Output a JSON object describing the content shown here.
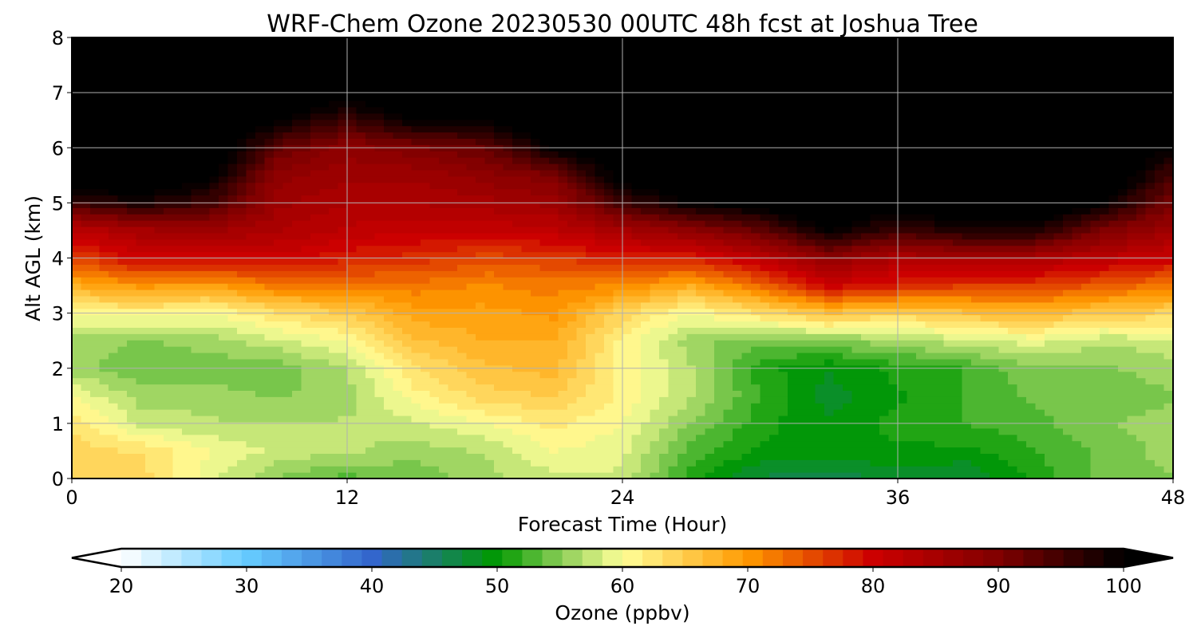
{
  "chart_data": {
    "type": "heatmap",
    "title": "WRF-Chem Ozone  20230530 00UTC 48h fcst at Joshua Tree",
    "xlabel": "Forecast Time (Hour)",
    "ylabel": "Alt AGL (km)",
    "xlim": [
      0,
      48
    ],
    "ylim": [
      0,
      8
    ],
    "xticks": [
      "0",
      "12",
      "24",
      "36",
      "48"
    ],
    "yticks": [
      "0",
      "1",
      "2",
      "3",
      "4",
      "5",
      "6",
      "7",
      "8"
    ],
    "grid": true,
    "colorbar": {
      "label": "Ozone  (ppbv)",
      "range": [
        20,
        100
      ],
      "extend": "both",
      "ticks": [
        "20",
        "30",
        "40",
        "50",
        "60",
        "70",
        "80",
        "90",
        "100"
      ],
      "anchors": [
        {
          "v": 20,
          "c": "#ffffff"
        },
        {
          "v": 30,
          "c": "#66ccff"
        },
        {
          "v": 40,
          "c": "#3366cc"
        },
        {
          "v": 50,
          "c": "#009900"
        },
        {
          "v": 55,
          "c": "#88cc55"
        },
        {
          "v": 60,
          "c": "#ffff99"
        },
        {
          "v": 70,
          "c": "#ff9900"
        },
        {
          "v": 80,
          "c": "#cc0000"
        },
        {
          "v": 90,
          "c": "#800000"
        },
        {
          "v": 100,
          "c": "#000000"
        }
      ]
    },
    "x_hours": [
      0,
      3,
      6,
      9,
      12,
      15,
      18,
      21,
      24,
      27,
      30,
      33,
      36,
      39,
      42,
      45,
      48
    ],
    "y_km": [
      0,
      0.5,
      1,
      1.5,
      2,
      2.5,
      3,
      3.5,
      4,
      4.5,
      5,
      5.5,
      6,
      6.5,
      7,
      7.5,
      8
    ],
    "ozone_ppbv_by_hour": [
      [
        64,
        64,
        63,
        60,
        56,
        56,
        60,
        68,
        75,
        82,
        95,
        105,
        105,
        105,
        105,
        105,
        105
      ],
      [
        64,
        63,
        58,
        56,
        54,
        55,
        61,
        70,
        80,
        85,
        98,
        105,
        105,
        105,
        105,
        105,
        105
      ],
      [
        59,
        60,
        57,
        56,
        54,
        56,
        60,
        69,
        80,
        86,
        95,
        101,
        105,
        105,
        105,
        105,
        105
      ],
      [
        55,
        58,
        57,
        55,
        54,
        58,
        63,
        72,
        80,
        84,
        86,
        88,
        92,
        100,
        105,
        105,
        105
      ],
      [
        53,
        57,
        57,
        56,
        57,
        60,
        65,
        72,
        78,
        82,
        84,
        86,
        88,
        95,
        102,
        105,
        105
      ],
      [
        54,
        56,
        58,
        61,
        63,
        66,
        69,
        72,
        77,
        81,
        84,
        86,
        90,
        100,
        105,
        105,
        105
      ],
      [
        56,
        57,
        60,
        64,
        66,
        68,
        69,
        71,
        75,
        81,
        85,
        88,
        92,
        100,
        105,
        105,
        105
      ],
      [
        58,
        60,
        62,
        65,
        67,
        68,
        70,
        72,
        76,
        82,
        86,
        90,
        100,
        105,
        105,
        105,
        105
      ],
      [
        58,
        59,
        60,
        61,
        61,
        61,
        64,
        71,
        78,
        85,
        95,
        102,
        105,
        105,
        105,
        105,
        105
      ],
      [
        51,
        53,
        55,
        57,
        57,
        56,
        60,
        68,
        78,
        88,
        100,
        105,
        105,
        105,
        105,
        105,
        105
      ],
      [
        47,
        50,
        51,
        52,
        51,
        54,
        63,
        73,
        82,
        92,
        102,
        105,
        105,
        105,
        105,
        105,
        105
      ],
      [
        46,
        50,
        49,
        48,
        49,
        55,
        66,
        80,
        88,
        100,
        105,
        105,
        105,
        105,
        105,
        105,
        105
      ],
      [
        48,
        50,
        51,
        50,
        51,
        56,
        64,
        78,
        84,
        95,
        102,
        105,
        105,
        105,
        105,
        105,
        105
      ],
      [
        47,
        50,
        52,
        52,
        52,
        58,
        66,
        76,
        85,
        98,
        105,
        105,
        105,
        105,
        105,
        105,
        105
      ],
      [
        51,
        52,
        53,
        54,
        55,
        59,
        67,
        76,
        84,
        98,
        105,
        105,
        105,
        105,
        105,
        105,
        105
      ],
      [
        54,
        54,
        55,
        54,
        55,
        57,
        65,
        74,
        82,
        90,
        100,
        105,
        105,
        105,
        105,
        105,
        105
      ],
      [
        55,
        56,
        56,
        55,
        56,
        58,
        64,
        72,
        80,
        86,
        90,
        94,
        100,
        105,
        105,
        105,
        105
      ]
    ]
  }
}
